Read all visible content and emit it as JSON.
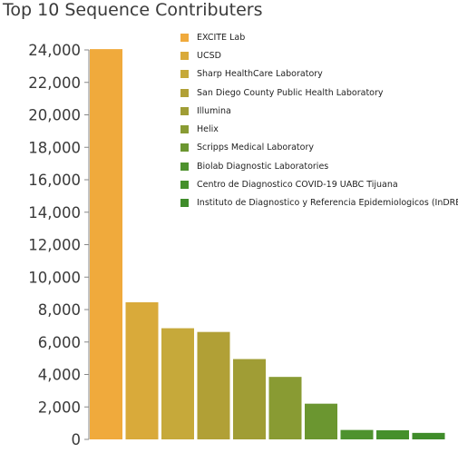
{
  "chart_data": {
    "type": "bar",
    "title": "Top 10 Sequence Contributers",
    "categories": [
      "EXCITE Lab",
      "UCSD",
      "Sharp HealthCare Laboratory",
      "San Diego County Public Health Laboratory",
      "Illumina",
      "Helix",
      "Scripps Medical Laboratory",
      "Biolab Diagnostic Laboratories",
      "Centro de Diagnostico COVID-19 UABC Tijuana",
      "Instituto de Diagnostico y Referencia Epidemiologicos (InDRE"
    ],
    "values": [
      24050,
      8450,
      6850,
      6620,
      4950,
      3850,
      2200,
      580,
      560,
      400
    ],
    "colors": [
      "#f0aa3c",
      "#d9aa3a",
      "#c6a93a",
      "#b1a036",
      "#a09d35",
      "#899b33",
      "#6b9630",
      "#4e922e",
      "#45902c",
      "#3f8c2a"
    ],
    "ylim": [
      0,
      24000
    ],
    "yticks": [
      0,
      2000,
      4000,
      6000,
      8000,
      10000,
      12000,
      14000,
      16000,
      18000,
      20000,
      22000,
      24000
    ],
    "ytick_labels": [
      "0",
      "2,000",
      "4,000",
      "6,000",
      "8,000",
      "10,000",
      "12,000",
      "14,000",
      "16,000",
      "18,000",
      "20,000",
      "22,000",
      "24,000"
    ],
    "legend_position": "top-right",
    "grid": false
  }
}
